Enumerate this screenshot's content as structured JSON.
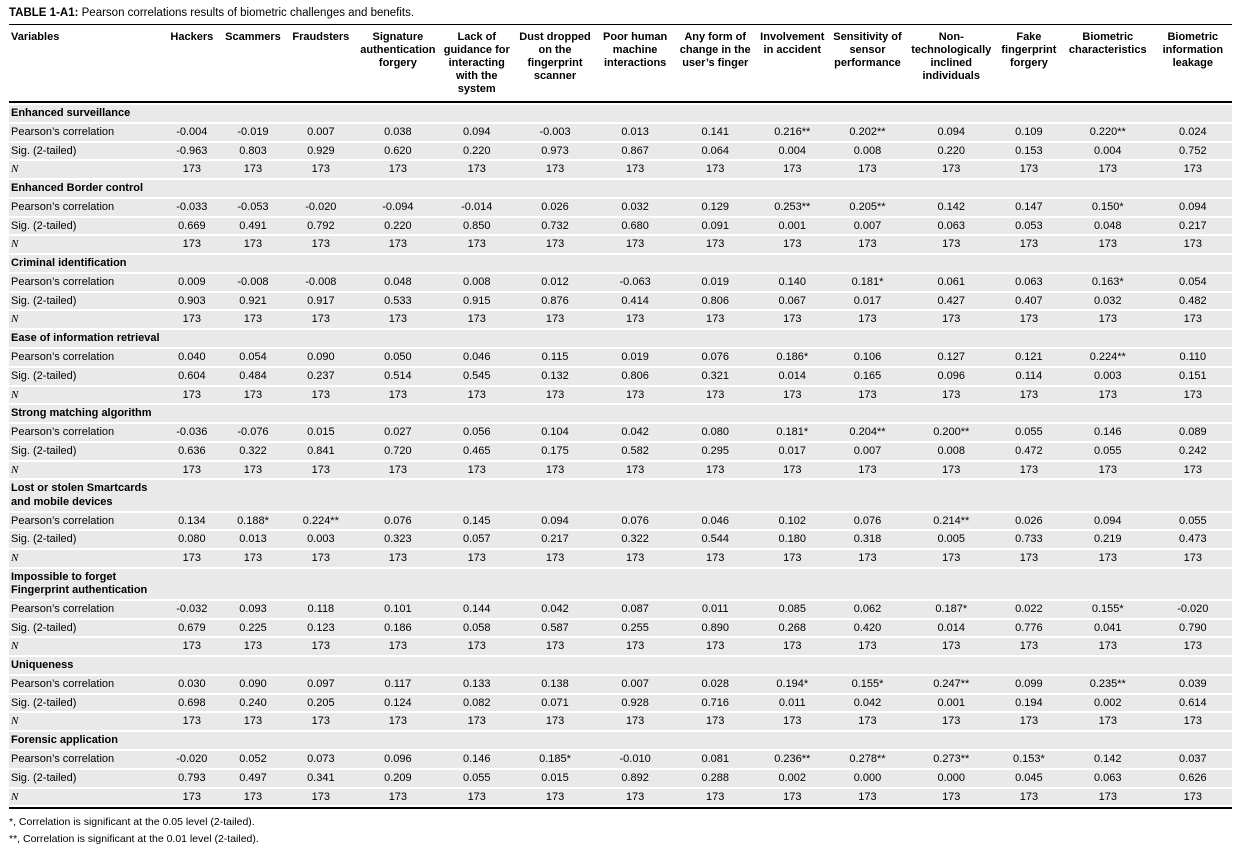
{
  "title": {
    "label": "TABLE 1-A1:",
    "text": "Pearson correlations results of biometric challenges and benefits."
  },
  "table": {
    "first_column_header": "Variables",
    "column_headers": [
      "Hackers",
      "Scammers",
      "Fraudsters",
      "Signature authentication forgery",
      "Lack of guidance for interacting with the system",
      "Dust dropped on the fingerprint scanner",
      "Poor human machine interactions",
      "Any form of change in the user’s finger",
      "Involvement in accident",
      "Sensitivity of sensor performance",
      "Non-technologically inclined individuals",
      "Fake fingerprint forgery",
      "Biometric characteristics",
      "Biometric information leakage"
    ],
    "row_labels": [
      "Pearson’s correlation",
      "Sig. (2-tailed)",
      "N"
    ],
    "groups": [
      {
        "name": "Enhanced surveillance",
        "pearson": [
          "-0.004",
          "-0.019",
          "0.007",
          "0.038",
          "0.094",
          "-0.003",
          "0.013",
          "0.141",
          "0.216**",
          "0.202**",
          "0.094",
          "0.109",
          "0.220**",
          "0.024"
        ],
        "sig": [
          "-0.963",
          "0.803",
          "0.929",
          "0.620",
          "0.220",
          "0.973",
          "0.867",
          "0.064",
          "0.004",
          "0.008",
          "0.220",
          "0.153",
          "0.004",
          "0.752"
        ],
        "n": [
          "173",
          "173",
          "173",
          "173",
          "173",
          "173",
          "173",
          "173",
          "173",
          "173",
          "173",
          "173",
          "173",
          "173"
        ]
      },
      {
        "name": "Enhanced Border control",
        "pearson": [
          "-0.033",
          "-0.053",
          "-0.020",
          "-0.094",
          "-0.014",
          "0.026",
          "0.032",
          "0.129",
          "0.253**",
          "0.205**",
          "0.142",
          "0.147",
          "0.150*",
          "0.094"
        ],
        "sig": [
          "0.669",
          "0.491",
          "0.792",
          "0.220",
          "0.850",
          "0.732",
          "0.680",
          "0.091",
          "0.001",
          "0.007",
          "0.063",
          "0.053",
          "0.048",
          "0.217"
        ],
        "n": [
          "173",
          "173",
          "173",
          "173",
          "173",
          "173",
          "173",
          "173",
          "173",
          "173",
          "173",
          "173",
          "173",
          "173"
        ]
      },
      {
        "name": "Criminal identification",
        "pearson": [
          "0.009",
          "-0.008",
          "-0.008",
          "0.048",
          "0.008",
          "0.012",
          "-0.063",
          "0.019",
          "0.140",
          "0.181*",
          "0.061",
          "0.063",
          "0.163*",
          "0.054"
        ],
        "sig": [
          "0.903",
          "0.921",
          "0.917",
          "0.533",
          "0.915",
          "0.876",
          "0.414",
          "0.806",
          "0.067",
          "0.017",
          "0.427",
          "0.407",
          "0.032",
          "0.482"
        ],
        "n": [
          "173",
          "173",
          "173",
          "173",
          "173",
          "173",
          "173",
          "173",
          "173",
          "173",
          "173",
          "173",
          "173",
          "173"
        ]
      },
      {
        "name": "Ease of information retrieval",
        "pearson": [
          "0.040",
          "0.054",
          "0.090",
          "0.050",
          "0.046",
          "0.115",
          "0.019",
          "0.076",
          "0.186*",
          "0.106",
          "0.127",
          "0.121",
          "0.224**",
          "0.110"
        ],
        "sig": [
          "0.604",
          "0.484",
          "0.237",
          "0.514",
          "0.545",
          "0.132",
          "0.806",
          "0.321",
          "0.014",
          "0.165",
          "0.096",
          "0.114",
          "0.003",
          "0.151"
        ],
        "n": [
          "173",
          "173",
          "173",
          "173",
          "173",
          "173",
          "173",
          "173",
          "173",
          "173",
          "173",
          "173",
          "173",
          "173"
        ]
      },
      {
        "name": "Strong matching algorithm",
        "pearson": [
          "-0.036",
          "-0.076",
          "0.015",
          "0.027",
          "0.056",
          "0.104",
          "0.042",
          "0.080",
          "0.181*",
          "0.204**",
          "0.200**",
          "0.055",
          "0.146",
          "0.089"
        ],
        "sig": [
          "0.636",
          "0.322",
          "0.841",
          "0.720",
          "0.465",
          "0.175",
          "0.582",
          "0.295",
          "0.017",
          "0.007",
          "0.008",
          "0.472",
          "0.055",
          "0.242"
        ],
        "n": [
          "173",
          "173",
          "173",
          "173",
          "173",
          "173",
          "173",
          "173",
          "173",
          "173",
          "173",
          "173",
          "173",
          "173"
        ]
      },
      {
        "name": "Lost or stolen Smartcards and mobile devices",
        "pearson": [
          "0.134",
          "0.188*",
          "0.224**",
          "0.076",
          "0.145",
          "0.094",
          "0.076",
          "0.046",
          "0.102",
          "0.076",
          "0.214**",
          "0.026",
          "0.094",
          "0.055"
        ],
        "sig": [
          "0.080",
          "0.013",
          "0.003",
          "0.323",
          "0.057",
          "0.217",
          "0.322",
          "0.544",
          "0.180",
          "0.318",
          "0.005",
          "0.733",
          "0.219",
          "0.473"
        ],
        "n": [
          "173",
          "173",
          "173",
          "173",
          "173",
          "173",
          "173",
          "173",
          "173",
          "173",
          "173",
          "173",
          "173",
          "173"
        ]
      },
      {
        "name": "Impossible to forget Fingerprint authentication",
        "pearson": [
          "-0.032",
          "0.093",
          "0.118",
          "0.101",
          "0.144",
          "0.042",
          "0.087",
          "0.011",
          "0.085",
          "0.062",
          "0.187*",
          "0.022",
          "0.155*",
          "-0.020"
        ],
        "sig": [
          "0.679",
          "0.225",
          "0.123",
          "0.186",
          "0.058",
          "0.587",
          "0.255",
          "0.890",
          "0.268",
          "0.420",
          "0.014",
          "0.776",
          "0.041",
          "0.790"
        ],
        "n": [
          "173",
          "173",
          "173",
          "173",
          "173",
          "173",
          "173",
          "173",
          "173",
          "173",
          "173",
          "173",
          "173",
          "173"
        ]
      },
      {
        "name": "Uniqueness",
        "pearson": [
          "0.030",
          "0.090",
          "0.097",
          "0.117",
          "0.133",
          "0.138",
          "0.007",
          "0.028",
          "0.194*",
          "0.155*",
          "0.247**",
          "0.099",
          "0.235**",
          "0.039"
        ],
        "sig": [
          "0.698",
          "0.240",
          "0.205",
          "0.124",
          "0.082",
          "0.071",
          "0.928",
          "0.716",
          "0.011",
          "0.042",
          "0.001",
          "0.194",
          "0.002",
          "0.614"
        ],
        "n": [
          "173",
          "173",
          "173",
          "173",
          "173",
          "173",
          "173",
          "173",
          "173",
          "173",
          "173",
          "173",
          "173",
          "173"
        ]
      },
      {
        "name": "Forensic application",
        "pearson": [
          "-0.020",
          "0.052",
          "0.073",
          "0.096",
          "0.146",
          "0.185*",
          "-0.010",
          "0.081",
          "0.236**",
          "0.278**",
          "0.273**",
          "0.153*",
          "0.142",
          "0.037"
        ],
        "sig": [
          "0.793",
          "0.497",
          "0.341",
          "0.209",
          "0.055",
          "0.015",
          "0.892",
          "0.288",
          "0.002",
          "0.000",
          "0.000",
          "0.045",
          "0.063",
          "0.626"
        ],
        "n": [
          "173",
          "173",
          "173",
          "173",
          "173",
          "173",
          "173",
          "173",
          "173",
          "173",
          "173",
          "173",
          "173",
          "173"
        ]
      }
    ]
  },
  "footnotes": [
    "*, Correlation is significant at the 0.05 level (2-tailed).",
    "**, Correlation is significant at the 0.01 level (2-tailed)."
  ]
}
